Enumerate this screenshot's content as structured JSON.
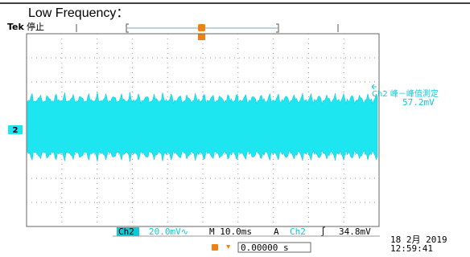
{
  "title": "Low Frequency：",
  "scope": {
    "brand": "Tek",
    "state": "停止",
    "channel_marker": "2",
    "measurement": {
      "label": "Ch2 峰－峰值測定",
      "value": "57.2mV"
    },
    "status": {
      "channel": "Ch2",
      "scale": "20.0mV∿",
      "timebase": "M 10.0ms",
      "trigger_mode": "A",
      "trigger_channel": "Ch2",
      "trigger_slope": "∫",
      "trigger_level": "34.8mV"
    },
    "date": "18 2月 2019",
    "time": "12:59:41",
    "trigger_offset": "0.00000 s"
  }
}
